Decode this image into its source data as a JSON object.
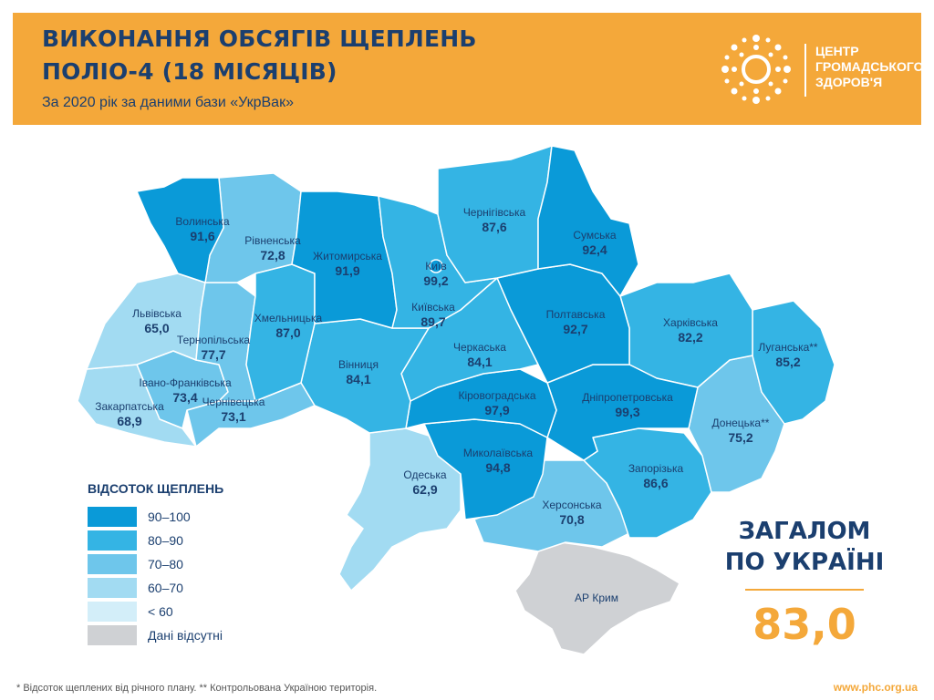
{
  "header": {
    "title_line1": "ВИКОНАННЯ ОБСЯГІВ ЩЕПЛЕНЬ",
    "title_line2": "ПОЛІО-4 (18 МІСЯЦІВ)",
    "subtitle": "За 2020 рік за даними бази «УкрВак»"
  },
  "logo": {
    "icon": "dotted-sun-logo-icon",
    "line1": "ЦЕНТР",
    "line2": "ГРОМАДСЬКОГО",
    "line3": "ЗДОРОВ'Я"
  },
  "colors": {
    "header_bg": "#f4a83a",
    "title": "#1b3f6f",
    "bin_90_100": "#0a9ad8",
    "bin_80_90": "#34b4e4",
    "bin_70_80": "#6ec6eb",
    "bin_60_70": "#a2dbf2",
    "bin_lt60": "#d3eef9",
    "bin_nodata": "#cfd1d4"
  },
  "legend": {
    "title": "ВІДСОТОК ЩЕПЛЕНЬ",
    "items": [
      {
        "label": "90–100",
        "color": "#0a9ad8"
      },
      {
        "label": "80–90",
        "color": "#34b4e4"
      },
      {
        "label": "70–80",
        "color": "#6ec6eb"
      },
      {
        "label": "60–70",
        "color": "#a2dbf2"
      },
      {
        "label": "< 60",
        "color": "#d3eef9"
      },
      {
        "label": "Дані відсутні",
        "color": "#cfd1d4"
      }
    ]
  },
  "regions": [
    {
      "name": "Волинська",
      "value": "91,6"
    },
    {
      "name": "Рівненська",
      "value": "72,8"
    },
    {
      "name": "Житомирська",
      "value": "91,9"
    },
    {
      "name": "Київ",
      "value": "99,2"
    },
    {
      "name": "Київська",
      "value": "89,7"
    },
    {
      "name": "Чернігівська",
      "value": "87,6"
    },
    {
      "name": "Сумська",
      "value": "92,4"
    },
    {
      "name": "Львівська",
      "value": "65,0"
    },
    {
      "name": "Тернопільська",
      "value": "77,7"
    },
    {
      "name": "Хмельницька",
      "value": "87,0"
    },
    {
      "name": "Вінниця",
      "value": "84,1"
    },
    {
      "name": "Черкаська",
      "value": "84,1"
    },
    {
      "name": "Полтавська",
      "value": "92,7"
    },
    {
      "name": "Харківська",
      "value": "82,2"
    },
    {
      "name": "Луганська**",
      "value": "85,2"
    },
    {
      "name": "Івано-Франківська",
      "value": "73,4"
    },
    {
      "name": "Закарпатська",
      "value": "68,9"
    },
    {
      "name": "Чернівецька",
      "value": "73,1"
    },
    {
      "name": "Кіровоградська",
      "value": "97,9"
    },
    {
      "name": "Дніпропетровська",
      "value": "99,3"
    },
    {
      "name": "Донецька**",
      "value": "75,2"
    },
    {
      "name": "Одеська",
      "value": "62,9"
    },
    {
      "name": "Миколаївська",
      "value": "94,8"
    },
    {
      "name": "Запорізька",
      "value": "86,6"
    },
    {
      "name": "Херсонська",
      "value": "70,8"
    },
    {
      "name": "АР Крим",
      "value": ""
    }
  ],
  "total": {
    "title_line1": "ЗАГАЛОМ",
    "title_line2": "ПО УКРАЇНІ",
    "value": "83,0"
  },
  "footnote": "* Відсоток щеплених від річного плану. ** Контрольована Україною територія.",
  "website": "www.phc.org.ua"
}
